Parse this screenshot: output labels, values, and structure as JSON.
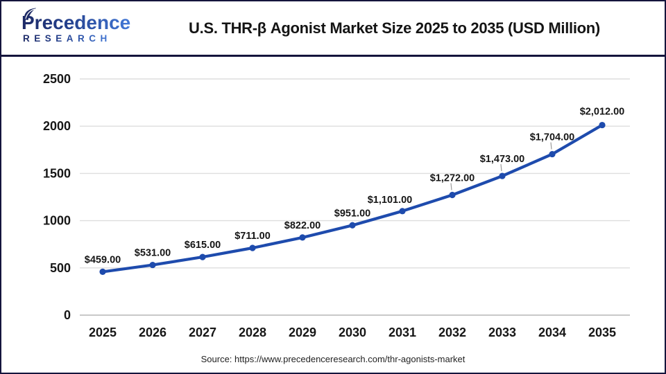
{
  "header": {
    "logo": {
      "name": "Precedence",
      "sub": "RESEARCH"
    },
    "title": "U.S. THR-β Agonist Market Size 2025 to 2035 (USD Million)"
  },
  "footer": {
    "source": "Source: https://www.precedenceresearch.com/thr-agonists-market"
  },
  "colors": {
    "line": "#1e4bad",
    "marker": "#1e4bad",
    "grid": "#dedede",
    "zero_axis": "#b5b5b5",
    "leader": "#9a9a9a",
    "text": "#161616",
    "border_navy": "#14143c",
    "logo_navy": "#1d2a66",
    "logo_blue": "#4379d8"
  },
  "chart_data": {
    "type": "line",
    "title": "U.S. THR-β Agonist Market Size 2025 to 2035 (USD Million)",
    "categories": [
      "2025",
      "2026",
      "2027",
      "2028",
      "2029",
      "2030",
      "2031",
      "2032",
      "2033",
      "2034",
      "2035"
    ],
    "values": [
      459,
      531,
      615,
      711,
      822,
      951,
      1101,
      1272,
      1473,
      1704,
      2012
    ],
    "labels": [
      "$459.00",
      "$531.00",
      "$615.00",
      "$711.00",
      "$822.00",
      "$951.00",
      "$1,101.00",
      "$1,272.00",
      "$1,473.00",
      "$1,704.00",
      "$2,012.00"
    ],
    "xlabel": "",
    "ylabel": "",
    "ylim": [
      0,
      2500
    ],
    "yticks": [
      0,
      500,
      1000,
      1500,
      2000,
      2500
    ],
    "grid": true,
    "legend": "none",
    "line_color": "#1e4bad",
    "marker": "circle"
  }
}
